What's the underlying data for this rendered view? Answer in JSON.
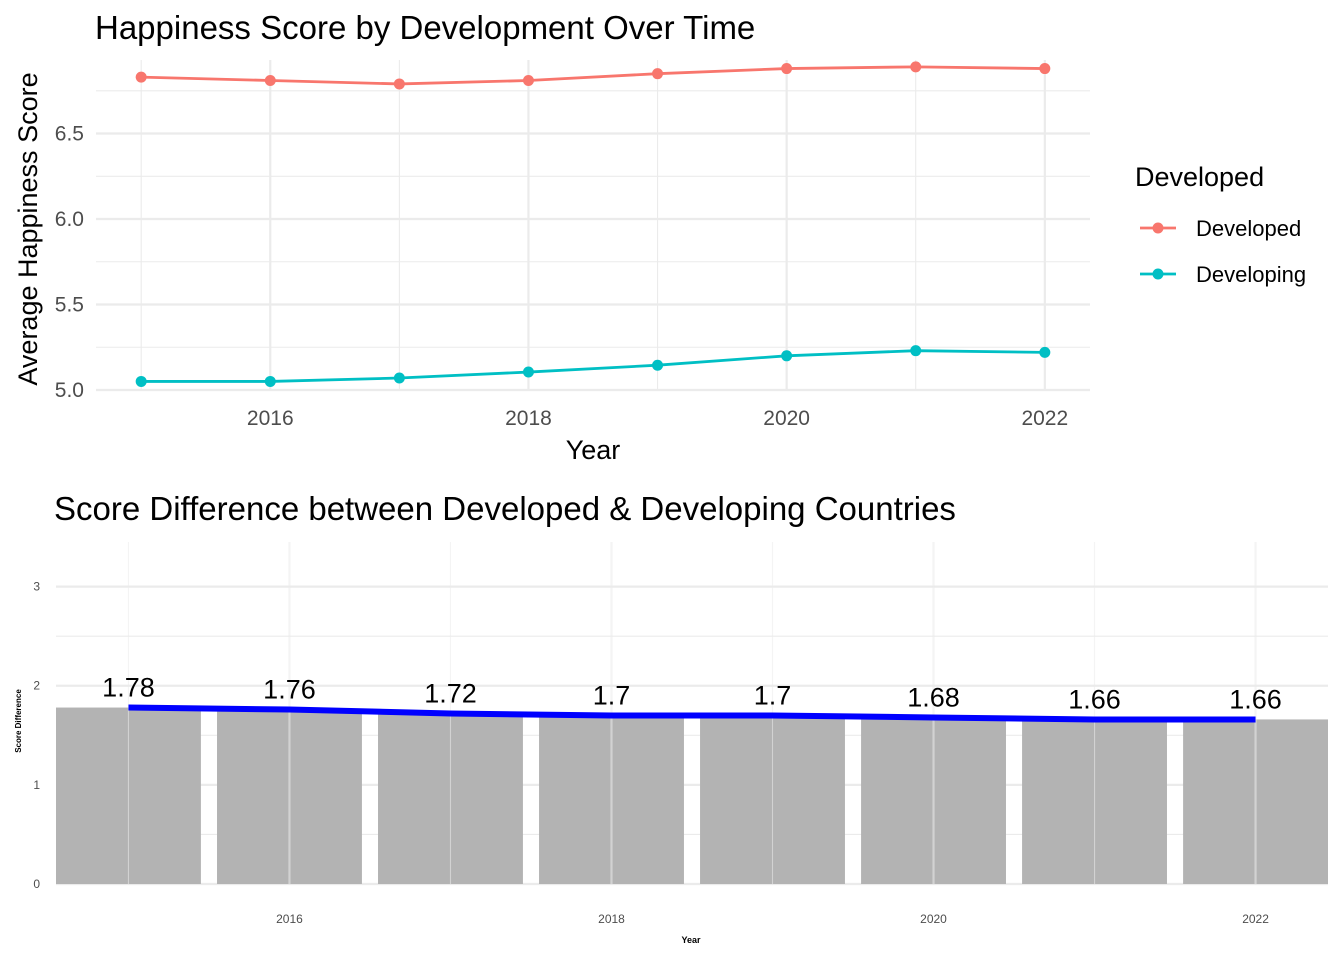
{
  "chart_data": [
    {
      "type": "line",
      "title": "Happiness Score by Development Over Time",
      "xlabel": "Year",
      "ylabel": "Average Happiness Score",
      "x": [
        2015,
        2016,
        2017,
        2018,
        2019,
        2020,
        2021,
        2022
      ],
      "x_ticks": [
        "2016",
        "2018",
        "2020",
        "2022"
      ],
      "y_ticks": [
        "5.0",
        "5.5",
        "6.0",
        "6.5"
      ],
      "xlim": [
        2014.65,
        2022.35
      ],
      "ylim": [
        5.0,
        6.93
      ],
      "grid": true,
      "legend": {
        "title": "Developed",
        "placement": "right"
      },
      "series": [
        {
          "name": "Developed",
          "color": "#F8766D",
          "values": [
            6.83,
            6.81,
            6.79,
            6.81,
            6.85,
            6.88,
            6.89,
            6.88
          ]
        },
        {
          "name": "Developing",
          "color": "#00BFC4",
          "values": [
            5.05,
            5.05,
            5.07,
            5.105,
            5.145,
            5.2,
            5.23,
            5.22
          ]
        }
      ]
    },
    {
      "type": "bar",
      "title": "Score Difference between Developed & Developing Countries",
      "xlabel": "Year",
      "ylabel": "Score Difference",
      "categories": [
        2015,
        2016,
        2017,
        2018,
        2019,
        2020,
        2021,
        2022
      ],
      "values": [
        1.78,
        1.76,
        1.72,
        1.7,
        1.7,
        1.68,
        1.66,
        1.66
      ],
      "data_labels": [
        "1.78",
        "1.76",
        "1.72",
        "1.7",
        "1.7",
        "1.68",
        "1.66",
        "1.66"
      ],
      "x_ticks": [
        "2016",
        "2018",
        "2020",
        "2022"
      ],
      "y_ticks": [
        "0",
        "1",
        "2",
        "3"
      ],
      "xlim": [
        2014.55,
        2022.45
      ],
      "ylim": [
        0,
        3.45
      ],
      "grid": true,
      "bar_color": "#B3B3B3",
      "line_color": "#0000FF"
    }
  ]
}
